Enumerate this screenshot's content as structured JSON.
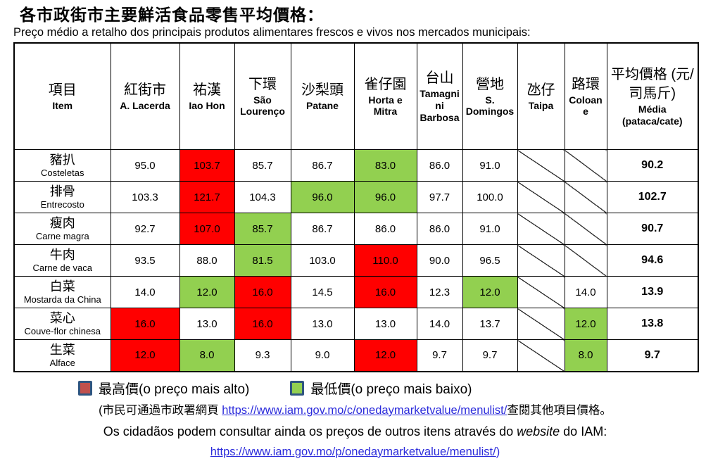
{
  "header": {
    "title_zh": "各市政街市主要鮮活食品零售平均價格：",
    "title_pt": "Preço médio a retalho dos principais produtos alimentares frescos e vivos nos mercados municipais:"
  },
  "table": {
    "item_header": {
      "zh": "項目",
      "pt": "Item"
    },
    "avg_header": {
      "zh": "平均價格 (元/司馬斤)",
      "pt": "Média (pataca/cate)"
    },
    "markets": [
      {
        "zh": "紅街市",
        "pt": "A. Lacerda"
      },
      {
        "zh": "祐漢",
        "pt": "Iao Hon"
      },
      {
        "zh": "下環",
        "pt": "São Lourenço"
      },
      {
        "zh": "沙梨頭",
        "pt": "Patane"
      },
      {
        "zh": "雀仔園",
        "pt": "Horta e Mitra"
      },
      {
        "zh": "台山",
        "pt": "Tamagnini Barbosa"
      },
      {
        "zh": "營地",
        "pt": "S. Domingos"
      },
      {
        "zh": "氹仔",
        "pt": "Taipa"
      },
      {
        "zh": "路環",
        "pt": "Coloane"
      }
    ],
    "rows": [
      {
        "item_zh": "豬扒",
        "item_pt": "Costeletas",
        "values": [
          "95.0",
          "103.7",
          "85.7",
          "86.7",
          "83.0",
          "86.0",
          "91.0",
          null,
          null
        ],
        "highlights": [
          null,
          "high",
          null,
          null,
          "low",
          null,
          null,
          null,
          null
        ],
        "avg": "90.2"
      },
      {
        "item_zh": "排骨",
        "item_pt": "Entrecosto",
        "values": [
          "103.3",
          "121.7",
          "104.3",
          "96.0",
          "96.0",
          "97.7",
          "100.0",
          null,
          null
        ],
        "highlights": [
          null,
          "high",
          null,
          "low",
          "low",
          null,
          null,
          null,
          null
        ],
        "avg": "102.7"
      },
      {
        "item_zh": "瘦肉",
        "item_pt": "Carne magra",
        "values": [
          "92.7",
          "107.0",
          "85.7",
          "86.7",
          "86.0",
          "86.0",
          "91.0",
          null,
          null
        ],
        "highlights": [
          null,
          "high",
          "low",
          null,
          null,
          null,
          null,
          null,
          null
        ],
        "avg": "90.7"
      },
      {
        "item_zh": "牛肉",
        "item_pt": "Carne de vaca",
        "values": [
          "93.5",
          "88.0",
          "81.5",
          "103.0",
          "110.0",
          "90.0",
          "96.5",
          null,
          null
        ],
        "highlights": [
          null,
          null,
          "low",
          null,
          "high",
          null,
          null,
          null,
          null
        ],
        "avg": "94.6"
      },
      {
        "item_zh": "白菜",
        "item_pt": "Mostarda da China",
        "values": [
          "14.0",
          "12.0",
          "16.0",
          "14.5",
          "16.0",
          "12.3",
          "12.0",
          null,
          "14.0"
        ],
        "highlights": [
          null,
          "low",
          "high",
          null,
          "high",
          null,
          "low",
          null,
          null
        ],
        "avg": "13.9"
      },
      {
        "item_zh": "菜心",
        "item_pt": "Couve-flor chinesa",
        "values": [
          "16.0",
          "13.0",
          "16.0",
          "13.0",
          "13.0",
          "14.0",
          "13.7",
          null,
          "12.0"
        ],
        "highlights": [
          "high",
          null,
          "high",
          null,
          null,
          null,
          null,
          null,
          "low"
        ],
        "avg": "13.8"
      },
      {
        "item_zh": "生菜",
        "item_pt": "Alface",
        "values": [
          "12.0",
          "8.0",
          "9.3",
          "9.0",
          "12.0",
          "9.7",
          "9.7",
          null,
          "8.0"
        ],
        "highlights": [
          "high",
          "low",
          null,
          null,
          "high",
          null,
          null,
          null,
          "low"
        ],
        "avg": "9.7"
      }
    ]
  },
  "legend": {
    "highest_label": "最高價(o preço mais alto)",
    "lowest_label": "最低價(o preço mais baixo)",
    "highest_color": "#C0504D",
    "lowest_color": "#92D050",
    "cell_high_color": "#FF0000",
    "cell_low_color": "#92D050"
  },
  "footer": {
    "note_zh_prefix": "(市民可通過市政署網頁 ",
    "link1": "https://www.iam.gov.mo/c/onedaymarketvalue/menulist/",
    "note_zh_suffix": "查閱其他項目價格。",
    "note_pt_prefix": "Os cidadãos podem consultar ainda os preços de outros itens através do ",
    "note_pt_italic": "website",
    "note_pt_suffix": " do IAM:",
    "link2": "https://www.iam.gov.mo/p/onedaymarketvalue/menulist/",
    "link2_suffix": ")"
  }
}
